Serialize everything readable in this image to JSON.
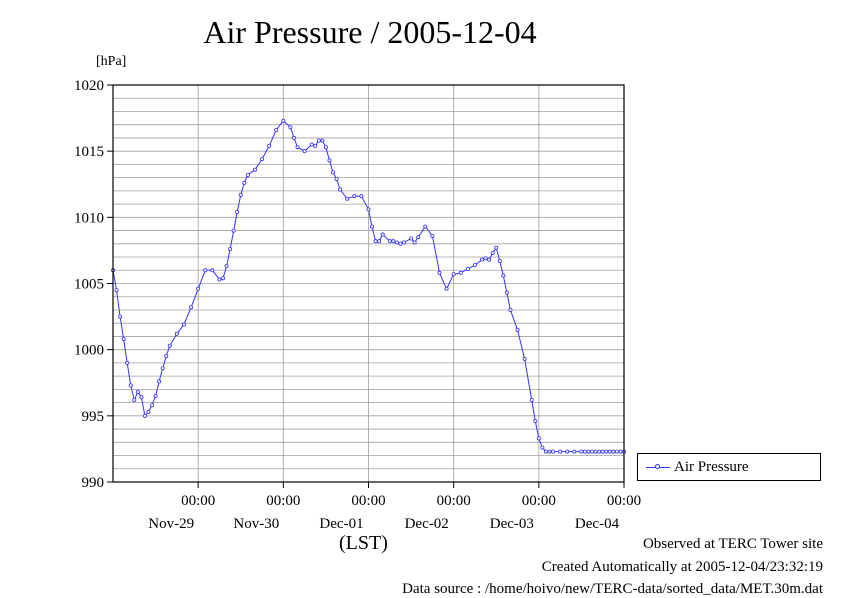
{
  "title": "Air Pressure / 2005-12-04",
  "unit_label": "[hPa]",
  "legend": {
    "label": "Air Pressure"
  },
  "xaxis_caption": "(LST)",
  "footer": {
    "observed": "Observed at TERC Tower site",
    "created": "Created Automatically at 2005-12-04/23:32:19",
    "source": "Data source : /home/hoivo/new/TERC-data/sorted_data/MET.30m.dat"
  },
  "colors": {
    "series": "#3333ff",
    "grid": "#a0a0a0",
    "axis": "#000000"
  },
  "chart_data": {
    "type": "line",
    "title": "Air Pressure / 2005-12-04",
    "ylabel": "[hPa]",
    "xlabel": "(LST)",
    "ylim": [
      990,
      1020
    ],
    "yticks": [
      990,
      995,
      1000,
      1005,
      1010,
      1015,
      1020
    ],
    "ygrid_step": 1,
    "xlim_hours": [
      0,
      144
    ],
    "xticks": [
      {
        "time": "00:00",
        "date": "Nov-29"
      },
      {
        "time": "00:00",
        "date": "Nov-30"
      },
      {
        "time": "00:00",
        "date": "Dec-01"
      },
      {
        "time": "00:00",
        "date": "Dec-02"
      },
      {
        "time": "00:00",
        "date": "Dec-03"
      },
      {
        "time": "00:00",
        "date": "Dec-04"
      }
    ],
    "grid": true,
    "legend_position": "right",
    "series": [
      {
        "name": "Air Pressure",
        "x": [
          0,
          1,
          2,
          3,
          4,
          5,
          6,
          7,
          8,
          9,
          10,
          11,
          12,
          13,
          14,
          15,
          16,
          18,
          20,
          22,
          24,
          26,
          28,
          30,
          31,
          32,
          33,
          34,
          35,
          36,
          37,
          38,
          40,
          42,
          44,
          46,
          48,
          50,
          51,
          52,
          54,
          56,
          57,
          58,
          59,
          60,
          61,
          62,
          63,
          64,
          66,
          68,
          70,
          72,
          73,
          74,
          75,
          76,
          78,
          79,
          80,
          81,
          82,
          84,
          85,
          86,
          88,
          90,
          92,
          94,
          96,
          98,
          100,
          102,
          104,
          105,
          106,
          107,
          108,
          109,
          110,
          111,
          112,
          114,
          116,
          118,
          119,
          120,
          121,
          122,
          123,
          124,
          126,
          128,
          130,
          132,
          133,
          134,
          135,
          136,
          137,
          138,
          139,
          140,
          141,
          142,
          143,
          144
        ],
        "y": [
          1006.0,
          1004.5,
          1002.5,
          1000.8,
          999.0,
          997.3,
          996.2,
          996.8,
          996.4,
          995.0,
          995.3,
          995.8,
          996.5,
          997.6,
          998.6,
          999.5,
          1000.3,
          1001.2,
          1001.9,
          1003.2,
          1004.6,
          1006.0,
          1006.0,
          1005.3,
          1005.4,
          1006.3,
          1007.6,
          1009.0,
          1010.4,
          1011.7,
          1012.6,
          1013.2,
          1013.6,
          1014.4,
          1015.4,
          1016.6,
          1017.3,
          1016.8,
          1016.0,
          1015.3,
          1015.0,
          1015.5,
          1015.4,
          1015.8,
          1015.8,
          1015.3,
          1014.3,
          1013.4,
          1012.9,
          1012.1,
          1011.4,
          1011.6,
          1011.6,
          1010.6,
          1009.3,
          1008.2,
          1008.2,
          1008.7,
          1008.2,
          1008.2,
          1008.1,
          1008.0,
          1008.1,
          1008.4,
          1008.1,
          1008.5,
          1009.3,
          1008.6,
          1005.8,
          1004.6,
          1005.7,
          1005.8,
          1006.1,
          1006.4,
          1006.8,
          1006.9,
          1006.8,
          1007.3,
          1007.7,
          1006.7,
          1005.6,
          1004.3,
          1003.0,
          1001.5,
          999.3,
          996.2,
          994.6,
          993.3,
          992.6,
          992.3,
          992.3,
          992.3,
          992.3,
          992.3,
          992.3,
          992.3,
          992.3,
          992.3,
          992.3,
          992.3,
          992.3,
          992.3,
          992.3,
          992.3,
          992.3,
          992.3,
          992.3,
          992.3
        ]
      }
    ]
  }
}
